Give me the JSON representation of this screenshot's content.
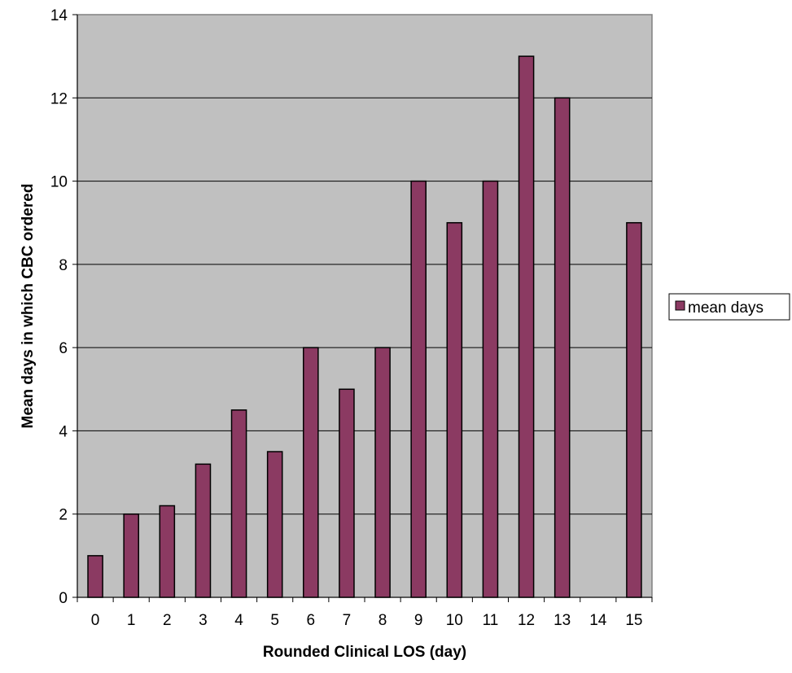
{
  "chart_data": {
    "type": "bar",
    "title": "",
    "xlabel": "Rounded Clinical LOS (day)",
    "ylabel": "Mean days in which CBC ordered",
    "categories": [
      "0",
      "1",
      "2",
      "3",
      "4",
      "5",
      "6",
      "7",
      "8",
      "9",
      "10",
      "11",
      "12",
      "13",
      "14",
      "15"
    ],
    "series": [
      {
        "name": "mean days",
        "values": [
          1,
          2,
          2.2,
          3.2,
          4.5,
          3.5,
          6,
          5,
          6,
          10,
          9,
          10,
          13,
          12,
          0,
          9
        ]
      }
    ],
    "ylim": [
      0,
      14
    ],
    "yticks": [
      "0",
      "2",
      "4",
      "6",
      "8",
      "10",
      "12",
      "14"
    ],
    "grid": true,
    "legend_position": "right",
    "colors": {
      "bar_fill": "#8B3A62",
      "bar_stroke": "#000000",
      "plot_background": "#C0C0C0",
      "gridline": "#000000"
    }
  }
}
